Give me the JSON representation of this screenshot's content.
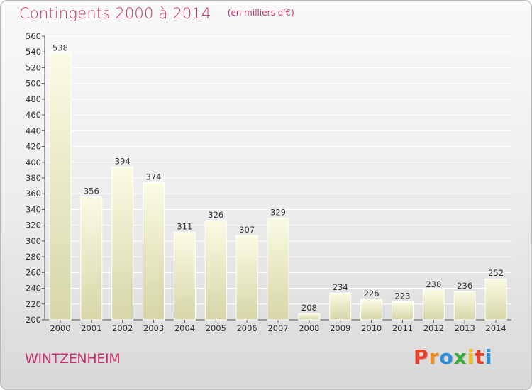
{
  "title": "Contingents 2000 à 2014",
  "subtitle": "(en milliers d'€)",
  "commune": "WINTZENHEIM",
  "logo": {
    "text": "Proxiti",
    "colors": [
      "#e8402a",
      "#f08a1a",
      "#2a8fd8",
      "#38b03c",
      "#f0c020",
      "#e8402a",
      "#2a8fd8"
    ]
  },
  "colors": {
    "accent": "#c8326e",
    "bar_light": "#fbfbe4",
    "bar_dark": "#d6d6a8",
    "axis": "#555555",
    "grid": "#ffffff"
  },
  "chart_data": {
    "type": "bar",
    "title": "Contingents 2000 à 2014",
    "subtitle": "(en milliers d'€)",
    "xlabel": "",
    "ylabel": "",
    "categories": [
      "2000",
      "2001",
      "2002",
      "2003",
      "2004",
      "2005",
      "2006",
      "2007",
      "2008",
      "2009",
      "2010",
      "2011",
      "2012",
      "2013",
      "2014"
    ],
    "values": [
      538,
      356,
      394,
      374,
      311,
      326,
      307,
      329,
      208,
      234,
      226,
      223,
      238,
      236,
      252
    ],
    "ylim": [
      200,
      560
    ],
    "yticks": [
      200,
      220,
      240,
      260,
      280,
      300,
      320,
      340,
      360,
      380,
      400,
      420,
      440,
      460,
      480,
      500,
      520,
      540,
      560
    ],
    "grid": true,
    "data_labels": true
  }
}
